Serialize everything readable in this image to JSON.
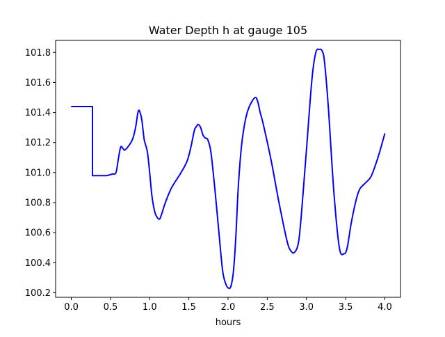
{
  "chart_data": {
    "type": "line",
    "title": "Water Depth h at gauge 105",
    "xlabel": "hours",
    "ylabel": "",
    "xlim": [
      -0.2,
      4.2
    ],
    "ylim": [
      100.17,
      101.88
    ],
    "x_ticks": [
      0.0,
      0.5,
      1.0,
      1.5,
      2.0,
      2.5,
      3.0,
      3.5,
      4.0
    ],
    "x_tick_labels": [
      "0.0",
      "0.5",
      "1.0",
      "1.5",
      "2.0",
      "2.5",
      "3.0",
      "3.5",
      "4.0"
    ],
    "y_ticks": [
      100.2,
      100.4,
      100.6,
      100.8,
      101.0,
      101.2,
      101.4,
      101.6,
      101.8
    ],
    "y_tick_labels": [
      "100.2",
      "100.4",
      "100.6",
      "100.8",
      "101.0",
      "101.2",
      "101.4",
      "101.6",
      "101.8"
    ],
    "grid": false,
    "legend": "none",
    "series": [
      {
        "color": "#0000ff",
        "x": [
          0.0,
          0.27,
          0.27,
          0.35,
          0.45,
          0.52,
          0.57,
          0.6,
          0.63,
          0.66,
          0.68,
          0.72,
          0.78,
          0.82,
          0.85,
          0.87,
          0.9,
          0.93,
          0.97,
          1.0,
          1.03,
          1.07,
          1.12,
          1.15,
          1.2,
          1.28,
          1.4,
          1.48,
          1.53,
          1.57,
          1.6,
          1.62,
          1.65,
          1.68,
          1.71,
          1.74,
          1.78,
          1.83,
          1.88,
          1.93,
          1.97,
          2.01,
          2.04,
          2.07,
          2.1,
          2.13,
          2.17,
          2.21,
          2.25,
          2.3,
          2.35,
          2.38,
          2.41,
          2.45,
          2.55,
          2.65,
          2.75,
          2.8,
          2.85,
          2.9,
          2.94,
          3.0,
          3.07,
          3.12,
          3.17,
          3.2,
          3.23,
          3.28,
          3.35,
          3.42,
          3.48,
          3.52,
          3.57,
          3.63,
          3.68,
          3.75,
          3.82,
          3.88,
          3.93,
          4.0
        ],
        "y": [
          101.44,
          101.44,
          100.98,
          100.98,
          100.98,
          100.99,
          101.0,
          101.09,
          101.17,
          101.16,
          101.15,
          101.17,
          101.22,
          101.3,
          101.4,
          101.41,
          101.35,
          101.22,
          101.14,
          101.0,
          100.84,
          100.73,
          100.69,
          100.72,
          100.8,
          100.9,
          101.0,
          101.08,
          101.18,
          101.28,
          101.31,
          101.32,
          101.3,
          101.25,
          101.23,
          101.22,
          101.14,
          100.9,
          100.62,
          100.35,
          100.26,
          100.23,
          100.25,
          100.35,
          100.58,
          100.9,
          101.17,
          101.32,
          101.41,
          101.47,
          101.5,
          101.47,
          101.4,
          101.32,
          101.08,
          100.8,
          100.55,
          100.48,
          100.47,
          100.54,
          100.75,
          101.15,
          101.62,
          101.8,
          101.82,
          101.81,
          101.74,
          101.43,
          100.87,
          100.5,
          100.46,
          100.5,
          100.66,
          100.81,
          100.89,
          100.93,
          100.97,
          101.05,
          101.13,
          101.26
        ]
      }
    ]
  }
}
